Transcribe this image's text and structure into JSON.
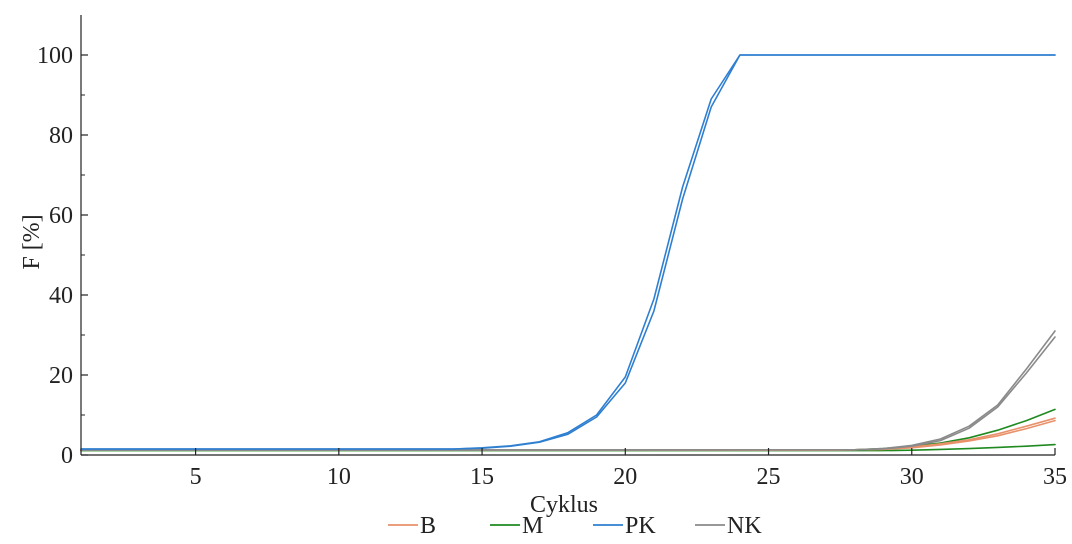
{
  "chart_data": {
    "type": "line",
    "xlabel": "Cyklus",
    "ylabel": "F [%]",
    "xlim": [
      1,
      35
    ],
    "ylim": [
      0,
      110
    ],
    "xticks": [
      5,
      10,
      15,
      20,
      25,
      30,
      35
    ],
    "yticks": [
      0,
      20,
      40,
      60,
      80,
      100
    ],
    "grid": false,
    "legend_position": "bottom",
    "series": [
      {
        "name": "B",
        "color": "#e8916a",
        "lines": [
          {
            "x": [
              1,
              27,
              28,
              29,
              30,
              31,
              32,
              33,
              34,
              35
            ],
            "y": [
              1.2,
              1.2,
              1.3,
              1.5,
              2.0,
              2.8,
              3.8,
              5.3,
              7.2,
              9.2
            ]
          },
          {
            "x": [
              1,
              27,
              28,
              29,
              30,
              31,
              32,
              33,
              34,
              35
            ],
            "y": [
              1.2,
              1.2,
              1.3,
              1.4,
              1.8,
              2.5,
              3.5,
              4.8,
              6.6,
              8.6
            ]
          }
        ]
      },
      {
        "name": "M",
        "color": "#1f8a1f",
        "lines": [
          {
            "x": [
              1,
              27,
              28,
              29,
              30,
              31,
              32,
              33,
              34,
              35
            ],
            "y": [
              1.2,
              1.2,
              1.3,
              1.6,
              2.2,
              3.0,
              4.3,
              6.2,
              8.6,
              11.4
            ]
          },
          {
            "x": [
              1,
              29,
              30,
              31,
              32,
              33,
              34,
              35
            ],
            "y": [
              1.1,
              1.1,
              1.2,
              1.4,
              1.6,
              1.9,
              2.2,
              2.6
            ]
          }
        ]
      },
      {
        "name": "PK",
        "color": "#2f7fd1",
        "lines": [
          {
            "x": [
              1,
              14,
              15,
              16,
              17,
              18,
              19,
              20,
              21,
              22,
              23,
              24,
              35
            ],
            "y": [
              1.5,
              1.5,
              1.8,
              2.3,
              3.3,
              5.6,
              10.0,
              19.5,
              39.0,
              67.0,
              89.0,
              100,
              100
            ]
          },
          {
            "x": [
              1,
              14,
              15,
              16,
              17,
              18,
              19,
              20,
              21,
              22,
              23,
              24,
              35
            ],
            "y": [
              1.5,
              1.5,
              1.7,
              2.2,
              3.2,
              5.2,
              9.5,
              18.0,
              36.0,
              64.0,
              87.0,
              100,
              100
            ]
          }
        ]
      },
      {
        "name": "NK",
        "color": "#8a8a8a",
        "lines": [
          {
            "x": [
              1,
              28,
              29,
              30,
              31,
              32,
              33,
              34,
              35
            ],
            "y": [
              1.2,
              1.3,
              1.6,
              2.4,
              4.0,
              7.2,
              12.5,
              21.5,
              31.0
            ]
          },
          {
            "x": [
              1,
              28,
              29,
              30,
              31,
              32,
              33,
              34,
              35
            ],
            "y": [
              1.2,
              1.3,
              1.5,
              2.2,
              3.6,
              6.7,
              12.0,
              20.5,
              29.5
            ]
          }
        ]
      }
    ]
  }
}
